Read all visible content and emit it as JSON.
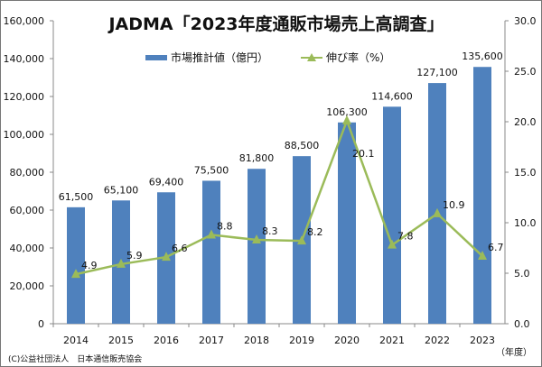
{
  "chart_data": {
    "type": "bar+line",
    "title": "JADMA「2023年度通販市場売上高調査」",
    "categories": [
      "2014",
      "2015",
      "2016",
      "2017",
      "2018",
      "2019",
      "2020",
      "2021",
      "2022",
      "2023"
    ],
    "xlabel": "（年度）",
    "series": [
      {
        "name": "市場推計値（億円）",
        "type": "bar",
        "axis": "left",
        "color": "#4f81bd",
        "values": [
          61500,
          65100,
          69400,
          75500,
          81800,
          88500,
          106300,
          114600,
          127100,
          135600
        ],
        "labels": [
          "61,500",
          "65,100",
          "69,400",
          "75,500",
          "81,800",
          "88,500",
          "106,300",
          "114,600",
          "127,100",
          "135,600"
        ]
      },
      {
        "name": "伸び率（%）",
        "type": "line",
        "axis": "right",
        "color": "#9bbb59",
        "marker": "triangle",
        "values": [
          4.9,
          5.9,
          6.6,
          8.8,
          8.3,
          8.2,
          20.1,
          7.8,
          10.9,
          6.7
        ],
        "labels": [
          "4.9",
          "5.9",
          "6.6",
          "8.8",
          "8.3",
          "8.2",
          "20.1",
          "7.8",
          "10.9",
          "6.7"
        ]
      }
    ],
    "y_left": {
      "range": [
        0,
        160000
      ],
      "ticks": [
        "0",
        "20,000",
        "40,000",
        "60,000",
        "80,000",
        "100,000",
        "120,000",
        "140,000",
        "160,000"
      ]
    },
    "y_right": {
      "range": [
        0,
        30
      ],
      "ticks": [
        "0.0",
        "5.0",
        "10.0",
        "15.0",
        "20.0",
        "25.0",
        "30.0"
      ]
    },
    "grid": false,
    "legend": "top-center"
  },
  "footer": {
    "copyright": "(C)公益社団法人　日本通信販売協会"
  }
}
